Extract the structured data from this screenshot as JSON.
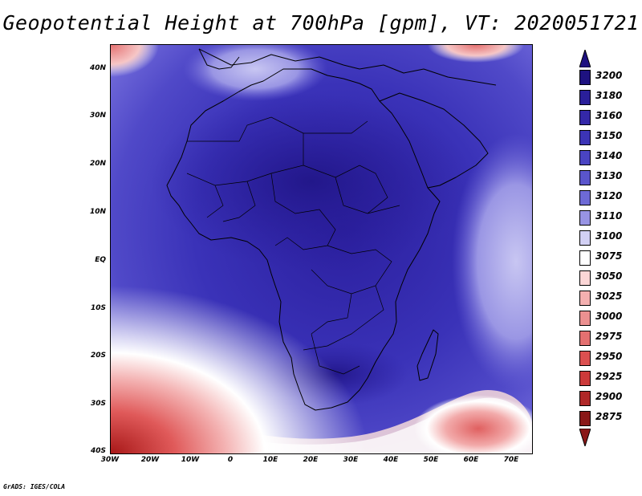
{
  "title": "Geopotential Height at 700hPa [gpm], VT: 2020051721",
  "credit": "GrADS: IGES/COLA",
  "map": {
    "lat_labels": [
      "40N",
      "30N",
      "20N",
      "10N",
      "EQ",
      "10S",
      "20S",
      "30S",
      "40S"
    ],
    "lon_labels": [
      "30W",
      "20W",
      "10W",
      "0",
      "10E",
      "20E",
      "30E",
      "40E",
      "50E",
      "60E",
      "70E"
    ],
    "lat_range": [
      -40,
      45
    ],
    "lon_range": [
      -30,
      75
    ]
  },
  "colorbar": {
    "levels": [
      "3200",
      "3180",
      "3160",
      "3150",
      "3140",
      "3130",
      "3120",
      "3110",
      "3100",
      "3075",
      "3050",
      "3025",
      "3000",
      "2975",
      "2950",
      "2925",
      "2900",
      "2875"
    ],
    "colors": [
      "#1e1280",
      "#2a1f9a",
      "#3428a8",
      "#3c34b6",
      "#4a44c2",
      "#5a55cc",
      "#6e6ad6",
      "#9894e4",
      "#d2d0f4",
      "#ffffff",
      "#fbd6d6",
      "#f4b0b0",
      "#ec9090",
      "#e47070",
      "#dc5050",
      "#cc3a3a",
      "#b02828",
      "#8a1818"
    ]
  }
}
